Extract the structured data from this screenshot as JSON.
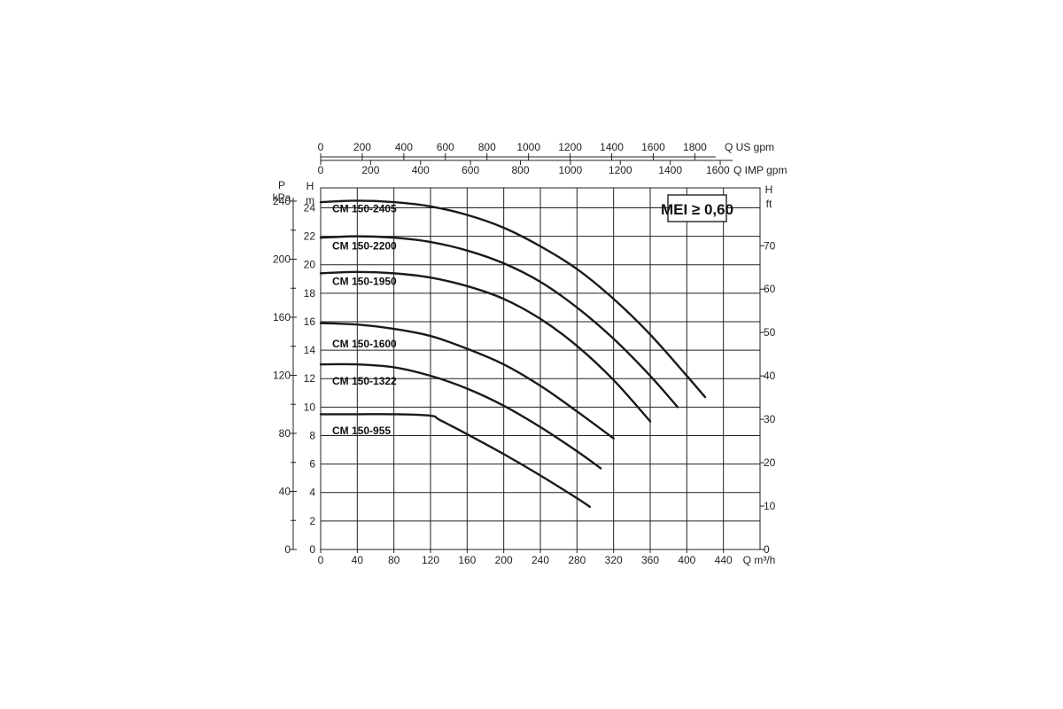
{
  "chart_data": {
    "type": "line",
    "x_axis": {
      "label": "Q m³/h",
      "range": [
        0,
        480
      ],
      "ticks": [
        0,
        40,
        80,
        120,
        160,
        200,
        240,
        280,
        320,
        360,
        400,
        440
      ],
      "grid_step": 40
    },
    "y_axis_left": {
      "label_top": "H",
      "label_unit": "m",
      "range": [
        0,
        25
      ],
      "ticks": [
        0,
        2,
        4,
        6,
        8,
        10,
        12,
        14,
        16,
        18,
        20,
        22,
        24
      ],
      "grid_step": 2
    },
    "y_axis_pressure": {
      "label_top": "P",
      "label_unit": "kPa",
      "ticks": [
        0,
        40,
        80,
        120,
        160,
        200,
        240
      ],
      "minor_ticks": [
        20,
        60,
        100,
        140,
        180,
        220
      ]
    },
    "y_axis_right": {
      "label_top": "H",
      "label_unit": "ft",
      "ticks": [
        0,
        10,
        20,
        30,
        40,
        50,
        60,
        70
      ]
    },
    "top_axis_us": {
      "label": "Q US gpm",
      "ticks": [
        0,
        200,
        400,
        600,
        800,
        1000,
        1200,
        1400,
        1600,
        1800
      ]
    },
    "top_axis_imp": {
      "label": "Q IMP gpm",
      "ticks": [
        0,
        200,
        400,
        600,
        800,
        1000,
        1200,
        1400,
        1600
      ]
    },
    "grid": true,
    "badge": "MEI ≥ 0,60",
    "series": [
      {
        "name": "CM 150-2405",
        "x": [
          0,
          40,
          80,
          120,
          160,
          200,
          240,
          280,
          320,
          360,
          400,
          420
        ],
        "y": [
          24.4,
          24.5,
          24.4,
          24.1,
          23.5,
          22.6,
          21.3,
          19.7,
          17.6,
          15.1,
          12.2,
          10.7
        ]
      },
      {
        "name": "CM 150-2200",
        "x": [
          0,
          40,
          80,
          120,
          160,
          200,
          240,
          280,
          320,
          360,
          390
        ],
        "y": [
          21.9,
          22.0,
          21.9,
          21.6,
          21.0,
          20.1,
          18.8,
          17.0,
          14.8,
          12.2,
          10.0
        ]
      },
      {
        "name": "CM 150-1950",
        "x": [
          0,
          40,
          80,
          120,
          160,
          200,
          240,
          280,
          320,
          360
        ],
        "y": [
          19.4,
          19.5,
          19.4,
          19.1,
          18.5,
          17.6,
          16.2,
          14.3,
          11.9,
          9.0
        ]
      },
      {
        "name": "CM 150-1600",
        "x": [
          0,
          40,
          80,
          120,
          160,
          200,
          240,
          280,
          320
        ],
        "y": [
          15.9,
          15.8,
          15.5,
          15.0,
          14.1,
          13.0,
          11.5,
          9.7,
          7.8
        ]
      },
      {
        "name": "CM 150-1322",
        "x": [
          0,
          40,
          80,
          120,
          160,
          200,
          240,
          280,
          306
        ],
        "y": [
          13.0,
          13.0,
          12.8,
          12.2,
          11.3,
          10.1,
          8.6,
          6.9,
          5.7
        ]
      },
      {
        "name": "CM 150-955",
        "x": [
          0,
          40,
          80,
          120,
          130,
          160,
          200,
          240,
          280,
          294
        ],
        "y": [
          9.5,
          9.5,
          9.5,
          9.4,
          9.1,
          8.1,
          6.7,
          5.2,
          3.6,
          3.0
        ]
      }
    ]
  }
}
